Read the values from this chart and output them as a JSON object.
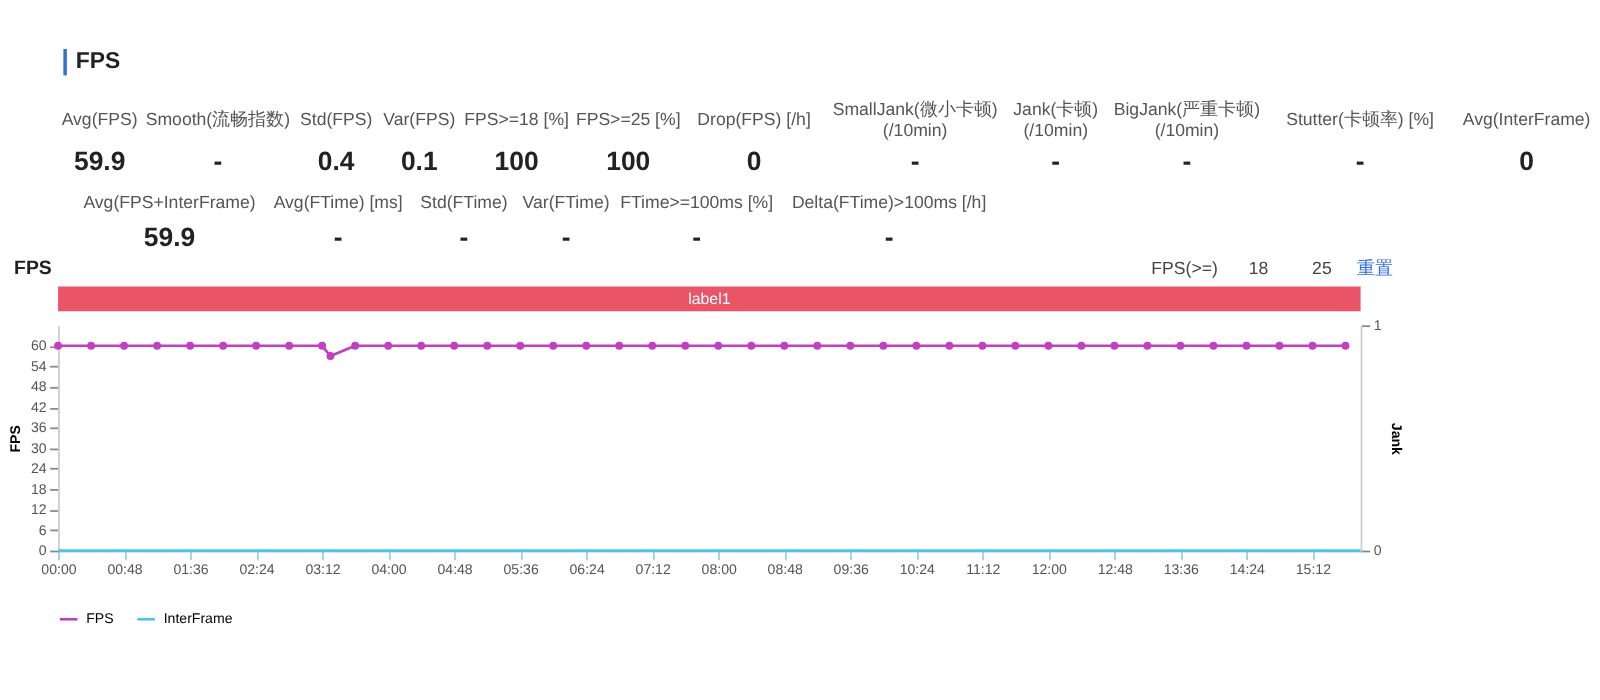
{
  "chart_data": [
    {
      "type": "other",
      "title": "FPS",
      "annotations": [
        "Avg(FPS)",
        "59.9",
        "Smooth(流畅指数)",
        "-",
        "Std(FPS)",
        "0.4",
        "Var(FPS)",
        "0.1",
        "FPS>=18 [%]",
        "100",
        "FPS>=25 [%]",
        "100",
        "Drop(FPS) [/h]",
        "0",
        "SmallJank(微小卡顿)\n(/10min)",
        "-",
        "Jank(卡顿)\n(/10min)",
        "-",
        "BigJank(严重卡顿)\n(/10min)",
        "-",
        "Stutter(卡顿率) [%]",
        "-",
        "Avg(InterFrame)",
        "0",
        "Avg(FPS+InterFrame)",
        "59.9",
        "Avg(FTime) [ms]",
        "-",
        "Std(FTime)",
        "-",
        "Var(FTime)",
        "-",
        "FTime>=100ms [%]",
        "-",
        "Delta(FTime)>100ms [/h]",
        "-"
      ]
    },
    {
      "type": "line",
      "title": "FPS",
      "ylabel": "FPS",
      "y2label": "Jank",
      "annotations": [
        "label1",
        "FPS(>=)",
        "18",
        "25",
        "重置"
      ],
      "xlim": [
        0,
        947
      ],
      "xticks": [
        {
          "value": 0,
          "label": "00:00"
        },
        {
          "value": 48,
          "label": "00:48"
        },
        {
          "value": 96,
          "label": "01:36"
        },
        {
          "value": 144,
          "label": "02:24"
        },
        {
          "value": 192,
          "label": "03:12"
        },
        {
          "value": 240,
          "label": "04:00"
        },
        {
          "value": 288,
          "label": "04:48"
        },
        {
          "value": 336,
          "label": "05:36"
        },
        {
          "value": 384,
          "label": "06:24"
        },
        {
          "value": 432,
          "label": "07:12"
        },
        {
          "value": 480,
          "label": "08:00"
        },
        {
          "value": 528,
          "label": "08:48"
        },
        {
          "value": 576,
          "label": "09:36"
        },
        {
          "value": 624,
          "label": "10:24"
        },
        {
          "value": 672,
          "label": "11:12"
        },
        {
          "value": 720,
          "label": "12:00"
        },
        {
          "value": 768,
          "label": "12:48"
        },
        {
          "value": 816,
          "label": "13:36"
        },
        {
          "value": 864,
          "label": "14:24"
        },
        {
          "value": 912,
          "label": "15:12"
        }
      ],
      "ylim": [
        0,
        66
      ],
      "yticks": [
        0,
        6,
        12,
        18,
        24,
        30,
        36,
        42,
        48,
        54,
        60
      ],
      "y2lim": [
        0,
        1
      ],
      "y2ticks": [
        0,
        1
      ],
      "legend": "bottom",
      "series": [
        {
          "name": "FPS",
          "color": "#c23ec3",
          "marker": "circle",
          "x": [
            0,
            24,
            48,
            72,
            96,
            120,
            144,
            168,
            192,
            198,
            216,
            240,
            264,
            288,
            312,
            336,
            360,
            384,
            408,
            432,
            456,
            480,
            504,
            528,
            552,
            576,
            600,
            624,
            648,
            672,
            696,
            720,
            744,
            768,
            792,
            816,
            840,
            864,
            888,
            912,
            936
          ],
          "values": [
            60,
            60,
            60,
            60,
            60,
            60,
            60,
            60,
            60,
            57,
            60,
            60,
            60,
            60,
            60,
            60,
            60,
            60,
            60,
            60,
            60,
            60,
            60,
            60,
            60,
            60,
            60,
            60,
            60,
            60,
            60,
            60,
            60,
            60,
            60,
            60,
            60,
            60,
            60,
            60,
            60
          ]
        },
        {
          "name": "InterFrame",
          "color": "#4cc4e6",
          "marker": "none",
          "x": [
            0,
            947
          ],
          "values": [
            0,
            0
          ]
        }
      ]
    }
  ]
}
